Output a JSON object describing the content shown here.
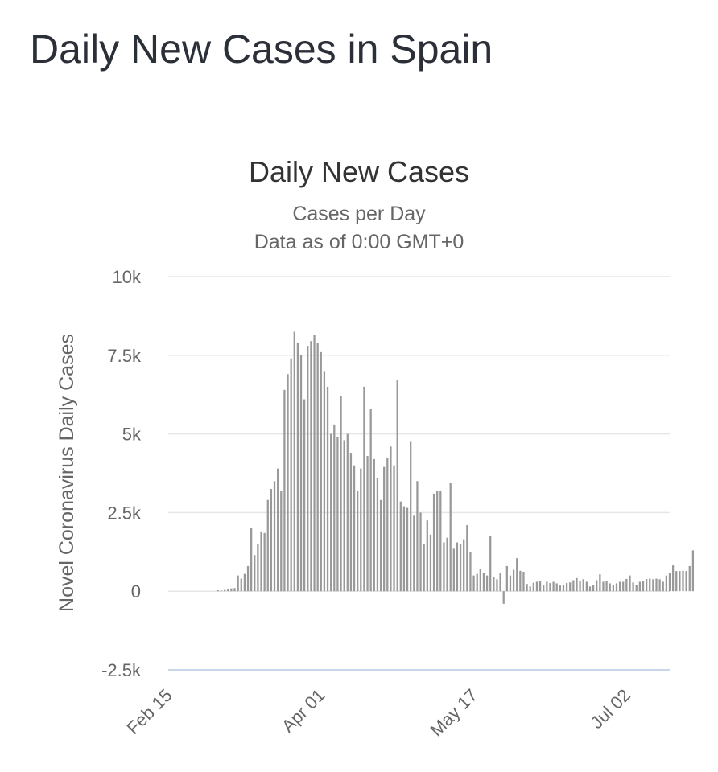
{
  "page": {
    "heading": "Daily New Cases in Spain"
  },
  "chart_data": {
    "type": "bar",
    "title": "Daily New Cases",
    "subtitle": [
      "Cases per Day",
      "Data as of 0:00 GMT+0"
    ],
    "ylabel": "Novel Coronavirus Daily Cases",
    "xlabel": "",
    "x_start": "2020-02-15",
    "x_end": "2020-07-15",
    "ylim": [
      -2500,
      10000
    ],
    "yticks": [
      {
        "value": 10000,
        "label": "10k"
      },
      {
        "value": 7500,
        "label": "7.5k"
      },
      {
        "value": 5000,
        "label": "5k"
      },
      {
        "value": 2500,
        "label": "2.5k"
      },
      {
        "value": 0,
        "label": "0"
      },
      {
        "value": -2500,
        "label": "-2.5k"
      }
    ],
    "xticks": [
      {
        "date": "2020-02-15",
        "label": "Feb 15"
      },
      {
        "date": "2020-04-01",
        "label": "Apr 01"
      },
      {
        "date": "2020-05-17",
        "label": "May 17"
      },
      {
        "date": "2020-07-02",
        "label": "Jul 02"
      }
    ],
    "grid": true,
    "colors": {
      "bar": "#999999",
      "grid": "#e6e6e6",
      "zero_line": "#ccd6eb",
      "text": "#333333",
      "subtitle": "#666666"
    },
    "series": [
      {
        "values": [
          [
            "2020-03-01",
            30
          ],
          [
            "2020-03-02",
            20
          ],
          [
            "2020-03-03",
            40
          ],
          [
            "2020-03-04",
            80
          ],
          [
            "2020-03-05",
            90
          ],
          [
            "2020-03-06",
            100
          ],
          [
            "2020-03-07",
            500
          ],
          [
            "2020-03-08",
            400
          ],
          [
            "2020-03-09",
            550
          ],
          [
            "2020-03-10",
            800
          ],
          [
            "2020-03-11",
            2000
          ],
          [
            "2020-03-12",
            1150
          ],
          [
            "2020-03-13",
            1500
          ],
          [
            "2020-03-14",
            1900
          ],
          [
            "2020-03-15",
            1850
          ],
          [
            "2020-03-16",
            2900
          ],
          [
            "2020-03-17",
            3250
          ],
          [
            "2020-03-18",
            3500
          ],
          [
            "2020-03-19",
            3900
          ],
          [
            "2020-03-20",
            3200
          ],
          [
            "2020-03-21",
            6400
          ],
          [
            "2020-03-22",
            6900
          ],
          [
            "2020-03-23",
            7400
          ],
          [
            "2020-03-24",
            8250
          ],
          [
            "2020-03-25",
            7900
          ],
          [
            "2020-03-26",
            7500
          ],
          [
            "2020-03-27",
            6100
          ],
          [
            "2020-03-28",
            7800
          ],
          [
            "2020-03-29",
            7950
          ],
          [
            "2020-03-30",
            8150
          ],
          [
            "2020-03-31",
            7900
          ],
          [
            "2020-04-01",
            7600
          ],
          [
            "2020-04-02",
            7000
          ],
          [
            "2020-04-03",
            6500
          ],
          [
            "2020-04-04",
            5000
          ],
          [
            "2020-04-05",
            5300
          ],
          [
            "2020-04-06",
            4900
          ],
          [
            "2020-04-07",
            6200
          ],
          [
            "2020-04-08",
            4800
          ],
          [
            "2020-04-09",
            5000
          ],
          [
            "2020-04-10",
            4400
          ],
          [
            "2020-04-11",
            4000
          ],
          [
            "2020-04-12",
            3200
          ],
          [
            "2020-04-13",
            3900
          ],
          [
            "2020-04-14",
            6500
          ],
          [
            "2020-04-15",
            4300
          ],
          [
            "2020-04-16",
            5800
          ],
          [
            "2020-04-17",
            4200
          ],
          [
            "2020-04-18",
            3600
          ],
          [
            "2020-04-19",
            2900
          ],
          [
            "2020-04-20",
            3950
          ],
          [
            "2020-04-21",
            4250
          ],
          [
            "2020-04-22",
            4600
          ],
          [
            "2020-04-23",
            4000
          ],
          [
            "2020-04-24",
            6700
          ],
          [
            "2020-04-25",
            2850
          ],
          [
            "2020-04-26",
            2700
          ],
          [
            "2020-04-27",
            2650
          ],
          [
            "2020-04-28",
            4750
          ],
          [
            "2020-04-29",
            2400
          ],
          [
            "2020-04-30",
            3500
          ],
          [
            "2020-05-01",
            2500
          ],
          [
            "2020-05-02",
            1500
          ],
          [
            "2020-05-03",
            2250
          ],
          [
            "2020-05-04",
            1800
          ],
          [
            "2020-05-05",
            3100
          ],
          [
            "2020-05-06",
            3200
          ],
          [
            "2020-05-07",
            3200
          ],
          [
            "2020-05-08",
            1550
          ],
          [
            "2020-05-09",
            1700
          ],
          [
            "2020-05-10",
            3450
          ],
          [
            "2020-05-11",
            1350
          ],
          [
            "2020-05-12",
            1550
          ],
          [
            "2020-05-13",
            1500
          ],
          [
            "2020-05-14",
            1650
          ],
          [
            "2020-05-15",
            2100
          ],
          [
            "2020-05-16",
            1250
          ],
          [
            "2020-05-17",
            500
          ],
          [
            "2020-05-18",
            550
          ],
          [
            "2020-05-19",
            700
          ],
          [
            "2020-05-20",
            580
          ],
          [
            "2020-05-21",
            500
          ],
          [
            "2020-05-22",
            1750
          ],
          [
            "2020-05-23",
            450
          ],
          [
            "2020-05-24",
            380
          ],
          [
            "2020-05-25",
            580
          ],
          [
            "2020-05-26",
            -400
          ],
          [
            "2020-05-27",
            800
          ],
          [
            "2020-05-28",
            500
          ],
          [
            "2020-05-29",
            680
          ],
          [
            "2020-05-30",
            1050
          ],
          [
            "2020-05-31",
            650
          ],
          [
            "2020-06-01",
            620
          ],
          [
            "2020-06-02",
            230
          ],
          [
            "2020-06-03",
            150
          ],
          [
            "2020-06-04",
            270
          ],
          [
            "2020-06-05",
            300
          ],
          [
            "2020-06-06",
            330
          ],
          [
            "2020-06-07",
            200
          ],
          [
            "2020-06-08",
            300
          ],
          [
            "2020-06-09",
            260
          ],
          [
            "2020-06-10",
            300
          ],
          [
            "2020-06-11",
            250
          ],
          [
            "2020-06-12",
            180
          ],
          [
            "2020-06-13",
            200
          ],
          [
            "2020-06-14",
            260
          ],
          [
            "2020-06-15",
            280
          ],
          [
            "2020-06-16",
            350
          ],
          [
            "2020-06-17",
            420
          ],
          [
            "2020-06-18",
            330
          ],
          [
            "2020-06-19",
            380
          ],
          [
            "2020-06-20",
            300
          ],
          [
            "2020-06-21",
            150
          ],
          [
            "2020-06-22",
            200
          ],
          [
            "2020-06-23",
            350
          ],
          [
            "2020-06-24",
            540
          ],
          [
            "2020-06-25",
            300
          ],
          [
            "2020-06-26",
            330
          ],
          [
            "2020-06-27",
            250
          ],
          [
            "2020-06-28",
            200
          ],
          [
            "2020-06-29",
            250
          ],
          [
            "2020-06-30",
            300
          ],
          [
            "2020-07-01",
            300
          ],
          [
            "2020-07-02",
            390
          ],
          [
            "2020-07-03",
            500
          ],
          [
            "2020-07-04",
            280
          ],
          [
            "2020-07-05",
            200
          ],
          [
            "2020-07-06",
            300
          ],
          [
            "2020-07-07",
            330
          ],
          [
            "2020-07-08",
            390
          ],
          [
            "2020-07-09",
            400
          ],
          [
            "2020-07-10",
            380
          ],
          [
            "2020-07-11",
            400
          ],
          [
            "2020-07-12",
            380
          ],
          [
            "2020-07-13",
            300
          ],
          [
            "2020-07-14",
            500
          ],
          [
            "2020-07-15",
            580
          ],
          [
            "2020-07-16",
            820
          ],
          [
            "2020-07-17",
            640
          ],
          [
            "2020-07-18",
            640
          ],
          [
            "2020-07-19",
            650
          ],
          [
            "2020-07-20",
            640
          ],
          [
            "2020-07-21",
            800
          ],
          [
            "2020-07-22",
            1300
          ]
        ]
      }
    ]
  }
}
